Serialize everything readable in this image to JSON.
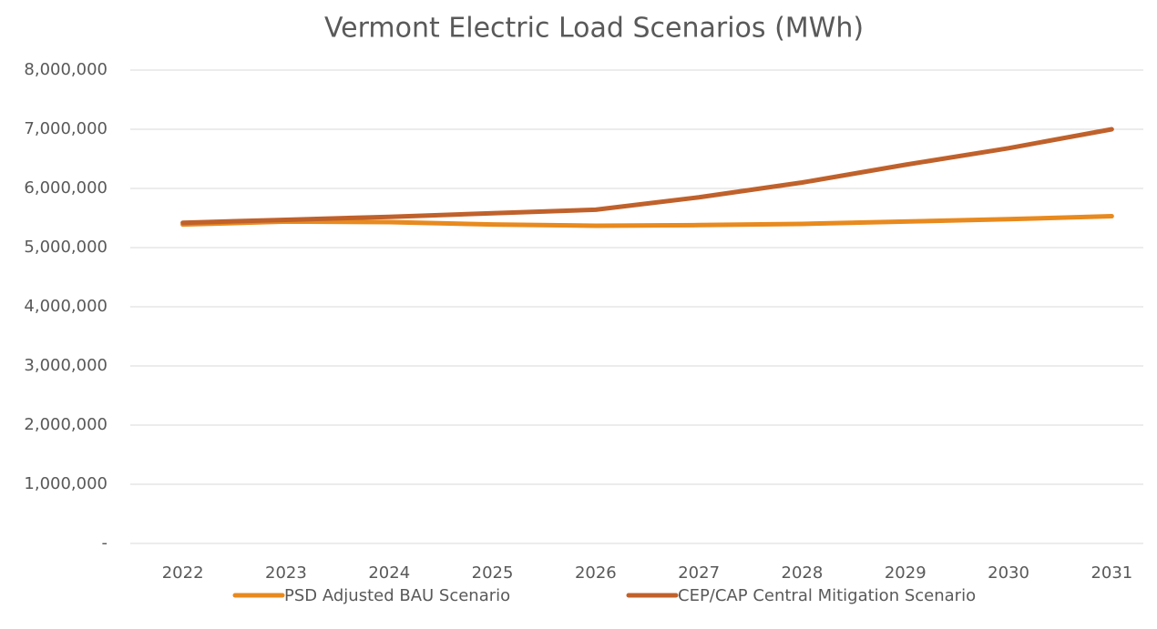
{
  "chart_data": {
    "type": "line",
    "title": "Vermont Electric Load Scenarios (MWh)",
    "categories": [
      "2022",
      "2023",
      "2024",
      "2025",
      "2026",
      "2027",
      "2028",
      "2029",
      "2030",
      "2031"
    ],
    "series": [
      {
        "name": "PSD Adjusted BAU Scenario",
        "color": "#e88a1e",
        "values": [
          5390000,
          5440000,
          5430000,
          5390000,
          5370000,
          5380000,
          5400000,
          5440000,
          5480000,
          5530000
        ]
      },
      {
        "name": "CEP/CAP Central Mitigation Scenario",
        "color": "#c0612b",
        "values": [
          5420000,
          5470000,
          5520000,
          5580000,
          5640000,
          5850000,
          6100000,
          6400000,
          6680000,
          7000000
        ]
      }
    ],
    "ylim": [
      0,
      8000000
    ],
    "yticks": [
      {
        "value": 0,
        "label": "-"
      },
      {
        "value": 1000000,
        "label": "1,000,000"
      },
      {
        "value": 2000000,
        "label": "2,000,000"
      },
      {
        "value": 3000000,
        "label": "3,000,000"
      },
      {
        "value": 4000000,
        "label": "4,000,000"
      },
      {
        "value": 5000000,
        "label": "5,000,000"
      },
      {
        "value": 6000000,
        "label": "6,000,000"
      },
      {
        "value": 7000000,
        "label": "7,000,000"
      },
      {
        "value": 8000000,
        "label": "8,000,000"
      }
    ],
    "grid": true,
    "legend": "bottom"
  }
}
